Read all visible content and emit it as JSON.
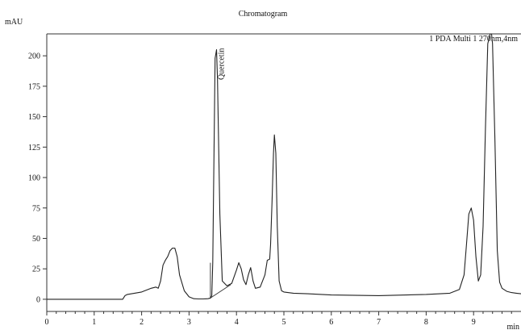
{
  "chart_data": {
    "type": "line",
    "title": "Chromatogram",
    "ylabel": "mAU",
    "xlabel": "min",
    "series_label": "1 PDA Multi 1 270nm,4nm",
    "xlim": [
      0,
      10
    ],
    "ylim": [
      -10,
      218
    ],
    "xticks": [
      0,
      1,
      2,
      3,
      4,
      5,
      6,
      7,
      8,
      9
    ],
    "yticks": [
      0,
      25,
      50,
      75,
      100,
      125,
      150,
      175,
      200
    ],
    "grid": false,
    "annotations": [
      {
        "text": "Quercetin",
        "x": 3.55,
        "y": 205
      }
    ],
    "series": [
      {
        "x": [
          0,
          1.6,
          1.65,
          1.7,
          2.0,
          2.2,
          2.3,
          2.35,
          2.4,
          2.45,
          2.5,
          2.55,
          2.6,
          2.65,
          2.7,
          2.75,
          2.8,
          2.9,
          3.0,
          3.1,
          3.2,
          3.3,
          3.4,
          3.45,
          3.48,
          3.5,
          3.52,
          3.55,
          3.58,
          3.6,
          3.65,
          3.7,
          3.8,
          3.9,
          4.0,
          4.05,
          4.1,
          4.15,
          4.2,
          4.25,
          4.3,
          4.35,
          4.4,
          4.5,
          4.6,
          4.65,
          4.7,
          4.72,
          4.75,
          4.78,
          4.8,
          4.83,
          4.86,
          4.9,
          4.95,
          5.0,
          5.2,
          5.5,
          6.0,
          7.0,
          8.0,
          8.5,
          8.7,
          8.8,
          8.85,
          8.9,
          8.95,
          9.0,
          9.05,
          9.1,
          9.15,
          9.2,
          9.25,
          9.3,
          9.35,
          9.38,
          9.4,
          9.45,
          9.5,
          9.55,
          9.6,
          9.7,
          9.8,
          9.9,
          10.0
        ],
        "y": [
          0,
          0,
          3,
          4,
          6,
          9,
          10,
          9,
          15,
          28,
          32,
          35,
          40,
          42,
          42,
          35,
          20,
          7,
          2,
          0.5,
          0.3,
          0.3,
          0.5,
          1,
          3,
          30,
          100,
          198,
          205,
          180,
          70,
          15,
          11,
          13,
          24,
          30,
          25,
          16,
          12,
          20,
          26,
          15,
          9,
          10,
          20,
          32,
          33,
          45,
          80,
          120,
          135,
          120,
          60,
          15,
          7,
          6,
          5,
          4.5,
          3.5,
          3,
          4,
          5,
          8,
          20,
          45,
          70,
          75,
          65,
          35,
          15,
          20,
          60,
          140,
          210,
          218,
          218,
          210,
          130,
          40,
          14,
          9,
          6.5,
          5.5,
          5,
          4.5
        ]
      }
    ]
  }
}
